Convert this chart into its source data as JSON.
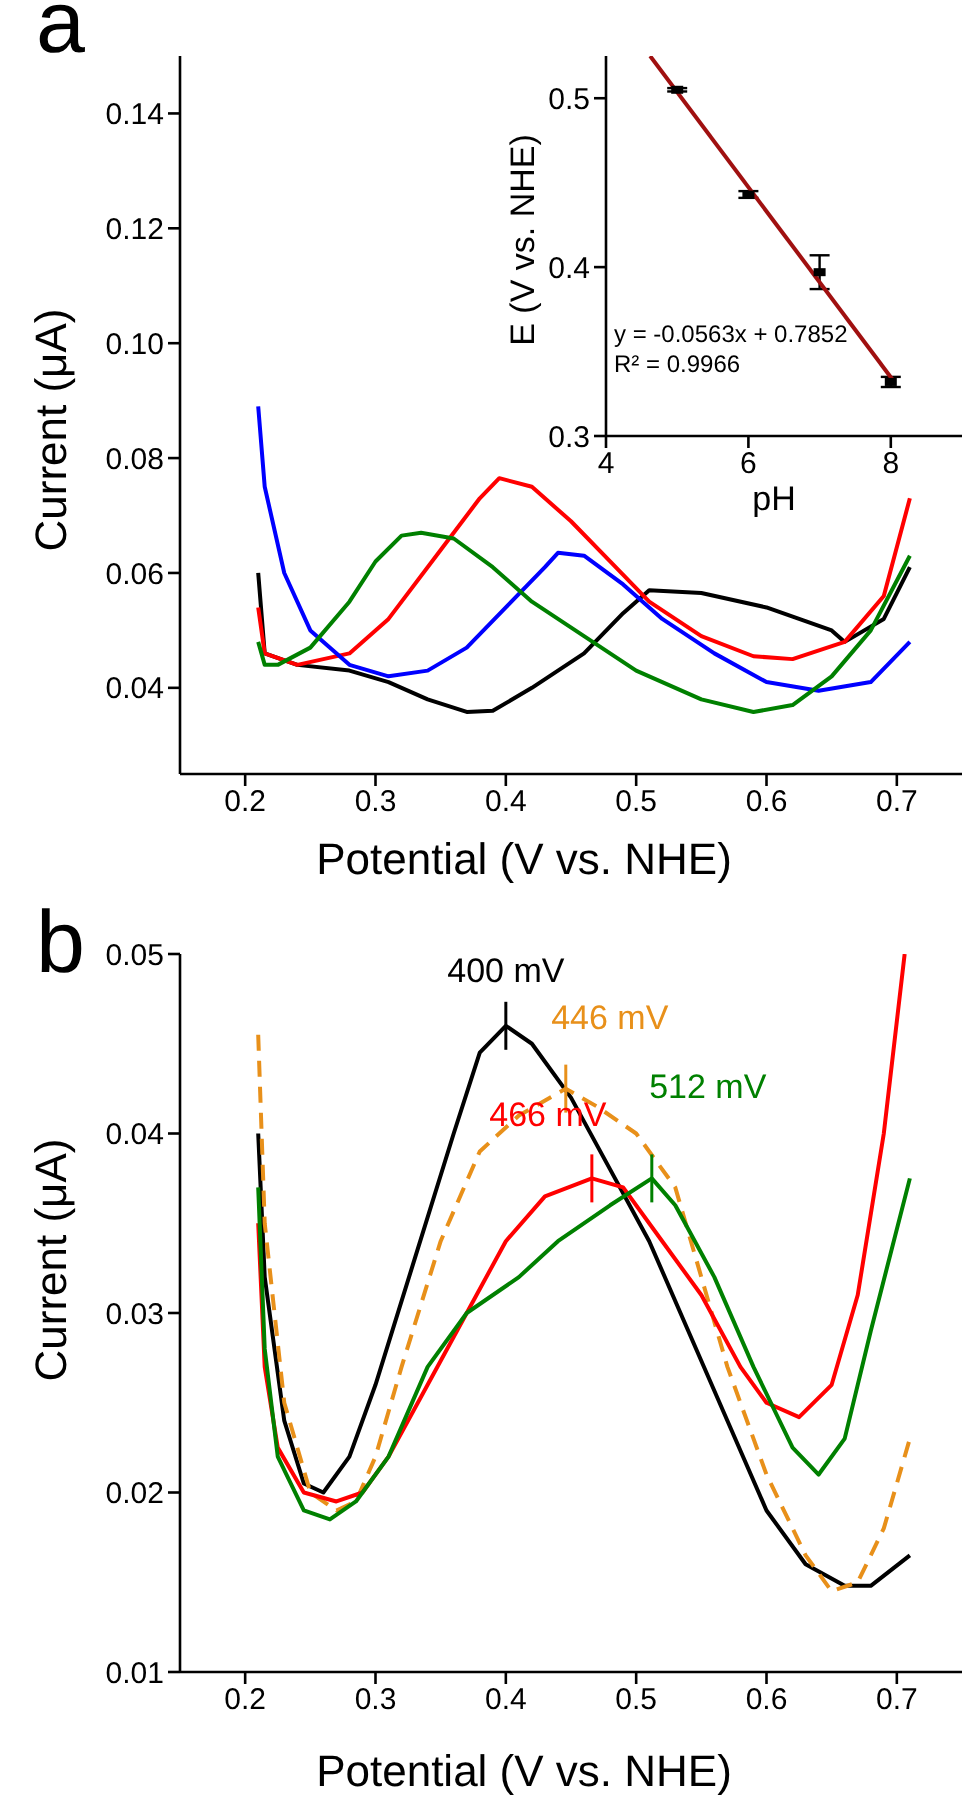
{
  "chart_data": [
    {
      "type": "line",
      "title": "a",
      "xlabel": "Potential (V vs. NHE)",
      "ylabel": "Current (μA)",
      "xlim": [
        0.15,
        0.75
      ],
      "ylim": [
        0.025,
        0.15
      ],
      "xticks": [
        0.2,
        0.3,
        0.4,
        0.5,
        0.6,
        0.7
      ],
      "yticks": [
        0.04,
        0.06,
        0.08,
        {
          "value": 0.1,
          "label": "0.10"
        },
        0.12,
        0.14
      ],
      "marker": "none",
      "legend": false,
      "series": [
        {
          "color": "#000000",
          "x": [
            0.21,
            0.215,
            0.24,
            0.28,
            0.31,
            0.34,
            0.37,
            0.39,
            0.42,
            0.46,
            0.49,
            0.51,
            0.55,
            0.6,
            0.65,
            0.66,
            0.69,
            0.71
          ],
          "values": [
            0.06,
            0.046,
            0.044,
            0.043,
            0.041,
            0.038,
            0.0358,
            0.036,
            0.04,
            0.046,
            0.053,
            0.057,
            0.0565,
            0.054,
            0.05,
            0.048,
            0.052,
            0.061
          ]
        },
        {
          "color": "#ff0000",
          "x": [
            0.21,
            0.215,
            0.24,
            0.28,
            0.31,
            0.35,
            0.38,
            0.395,
            0.42,
            0.45,
            0.48,
            0.51,
            0.55,
            0.59,
            0.62,
            0.66,
            0.69,
            0.71
          ],
          "values": [
            0.054,
            0.046,
            0.044,
            0.046,
            0.052,
            0.064,
            0.073,
            0.0765,
            0.075,
            0.069,
            0.062,
            0.055,
            0.049,
            0.0455,
            0.045,
            0.048,
            0.056,
            0.073
          ]
        },
        {
          "color": "#0000ff",
          "x": [
            0.21,
            0.215,
            0.23,
            0.25,
            0.28,
            0.31,
            0.34,
            0.37,
            0.4,
            0.43,
            0.44,
            0.46,
            0.49,
            0.52,
            0.56,
            0.6,
            0.64,
            0.68,
            0.71
          ],
          "values": [
            0.089,
            0.075,
            0.06,
            0.05,
            0.044,
            0.042,
            0.043,
            0.047,
            0.054,
            0.061,
            0.0635,
            0.063,
            0.058,
            0.052,
            0.046,
            0.041,
            0.0395,
            0.041,
            0.048
          ]
        },
        {
          "color": "#008000",
          "x": [
            0.21,
            0.215,
            0.225,
            0.25,
            0.28,
            0.3,
            0.32,
            0.335,
            0.36,
            0.39,
            0.42,
            0.46,
            0.5,
            0.55,
            0.59,
            0.62,
            0.65,
            0.68,
            0.71
          ],
          "values": [
            0.048,
            0.044,
            0.044,
            0.047,
            0.055,
            0.062,
            0.0665,
            0.067,
            0.066,
            0.061,
            0.055,
            0.049,
            0.043,
            0.038,
            0.0358,
            0.037,
            0.042,
            0.05,
            0.063
          ]
        }
      ]
    },
    {
      "type": "scatter",
      "xlabel": "pH",
      "ylabel": "E (V vs. NHE)",
      "xlim": [
        4,
        9
      ],
      "ylim": [
        0.3,
        0.525
      ],
      "xticks": [
        4,
        6,
        8
      ],
      "yticks": [
        0.3,
        0.4,
        0.5
      ],
      "legend": false,
      "annotations": [
        "y = -0.0563x + 0.7852",
        "R² = 0.9966"
      ],
      "series": [
        {
          "type": "scatter",
          "marker": "square",
          "color": "#000000",
          "x": [
            5,
            6,
            7,
            8
          ],
          "values": [
            0.505,
            0.443,
            0.397,
            0.332
          ],
          "errors": [
            0.001,
            0.002,
            0.01,
            0.003
          ]
        },
        {
          "type": "line",
          "marker": "none",
          "color": "#a01010",
          "x": [
            4.62,
            8.05
          ],
          "values": [
            0.525,
            0.332
          ]
        }
      ]
    },
    {
      "type": "line",
      "title": "b",
      "xlabel": "Potential (V vs. NHE)",
      "ylabel": "Current (μA)",
      "xlim": [
        0.15,
        0.75
      ],
      "ylim": [
        0.01,
        0.05
      ],
      "xticks": [
        0.2,
        0.3,
        0.4,
        0.5,
        0.6,
        0.7
      ],
      "yticks": [
        0.01,
        0.02,
        0.03,
        0.04,
        0.05
      ],
      "marker": "none",
      "legend": false,
      "annotations": [
        {
          "text": "400 mV",
          "x": 0.4,
          "y": 0.046
        },
        {
          "text": "446 mV",
          "x": 0.446,
          "y": 0.0425
        },
        {
          "text": "466 mV",
          "x": 0.466,
          "y": 0.0375
        },
        {
          "text": "512 mV",
          "x": 0.512,
          "y": 0.0375
        }
      ],
      "series": [
        {
          "color": "#000000",
          "line_style": "solid",
          "x": [
            0.21,
            0.215,
            0.23,
            0.245,
            0.26,
            0.28,
            0.3,
            0.33,
            0.36,
            0.38,
            0.4,
            0.42,
            0.45,
            0.48,
            0.51,
            0.54,
            0.57,
            0.6,
            0.63,
            0.66,
            0.68,
            0.71
          ],
          "values": [
            0.04,
            0.032,
            0.024,
            0.0205,
            0.02,
            0.022,
            0.026,
            0.033,
            0.04,
            0.0445,
            0.046,
            0.045,
            0.042,
            0.038,
            0.034,
            0.029,
            0.024,
            0.019,
            0.016,
            0.0148,
            0.0148,
            0.0165
          ]
        },
        {
          "color": "#e8901a",
          "line_style": "dashed",
          "x": [
            0.21,
            0.215,
            0.23,
            0.25,
            0.27,
            0.285,
            0.3,
            0.32,
            0.35,
            0.38,
            0.41,
            0.446,
            0.47,
            0.5,
            0.53,
            0.55,
            0.57,
            0.6,
            0.63,
            0.65,
            0.67,
            0.69,
            0.71
          ],
          "values": [
            0.0455,
            0.035,
            0.025,
            0.02,
            0.019,
            0.0195,
            0.022,
            0.027,
            0.034,
            0.039,
            0.041,
            0.0425,
            0.0415,
            0.04,
            0.037,
            0.032,
            0.027,
            0.021,
            0.0165,
            0.0145,
            0.015,
            0.018,
            0.023
          ]
        },
        {
          "color": "#ff0000",
          "line_style": "solid",
          "x": [
            0.21,
            0.215,
            0.225,
            0.245,
            0.27,
            0.29,
            0.31,
            0.34,
            0.37,
            0.4,
            0.43,
            0.466,
            0.49,
            0.52,
            0.55,
            0.58,
            0.6,
            0.625,
            0.65,
            0.67,
            0.69,
            0.706
          ],
          "values": [
            0.035,
            0.027,
            0.0225,
            0.02,
            0.0195,
            0.02,
            0.022,
            0.026,
            0.03,
            0.034,
            0.0365,
            0.0375,
            0.037,
            0.034,
            0.031,
            0.027,
            0.025,
            0.0242,
            0.026,
            0.031,
            0.04,
            0.05
          ]
        },
        {
          "color": "#008000",
          "line_style": "solid",
          "x": [
            0.21,
            0.215,
            0.225,
            0.245,
            0.265,
            0.285,
            0.31,
            0.34,
            0.37,
            0.41,
            0.44,
            0.48,
            0.512,
            0.53,
            0.56,
            0.59,
            0.62,
            0.64,
            0.66,
            0.68,
            0.71
          ],
          "values": [
            0.037,
            0.028,
            0.022,
            0.019,
            0.0185,
            0.0195,
            0.022,
            0.027,
            0.03,
            0.032,
            0.034,
            0.036,
            0.0375,
            0.036,
            0.032,
            0.027,
            0.0225,
            0.021,
            0.023,
            0.029,
            0.0375
          ]
        }
      ]
    }
  ]
}
